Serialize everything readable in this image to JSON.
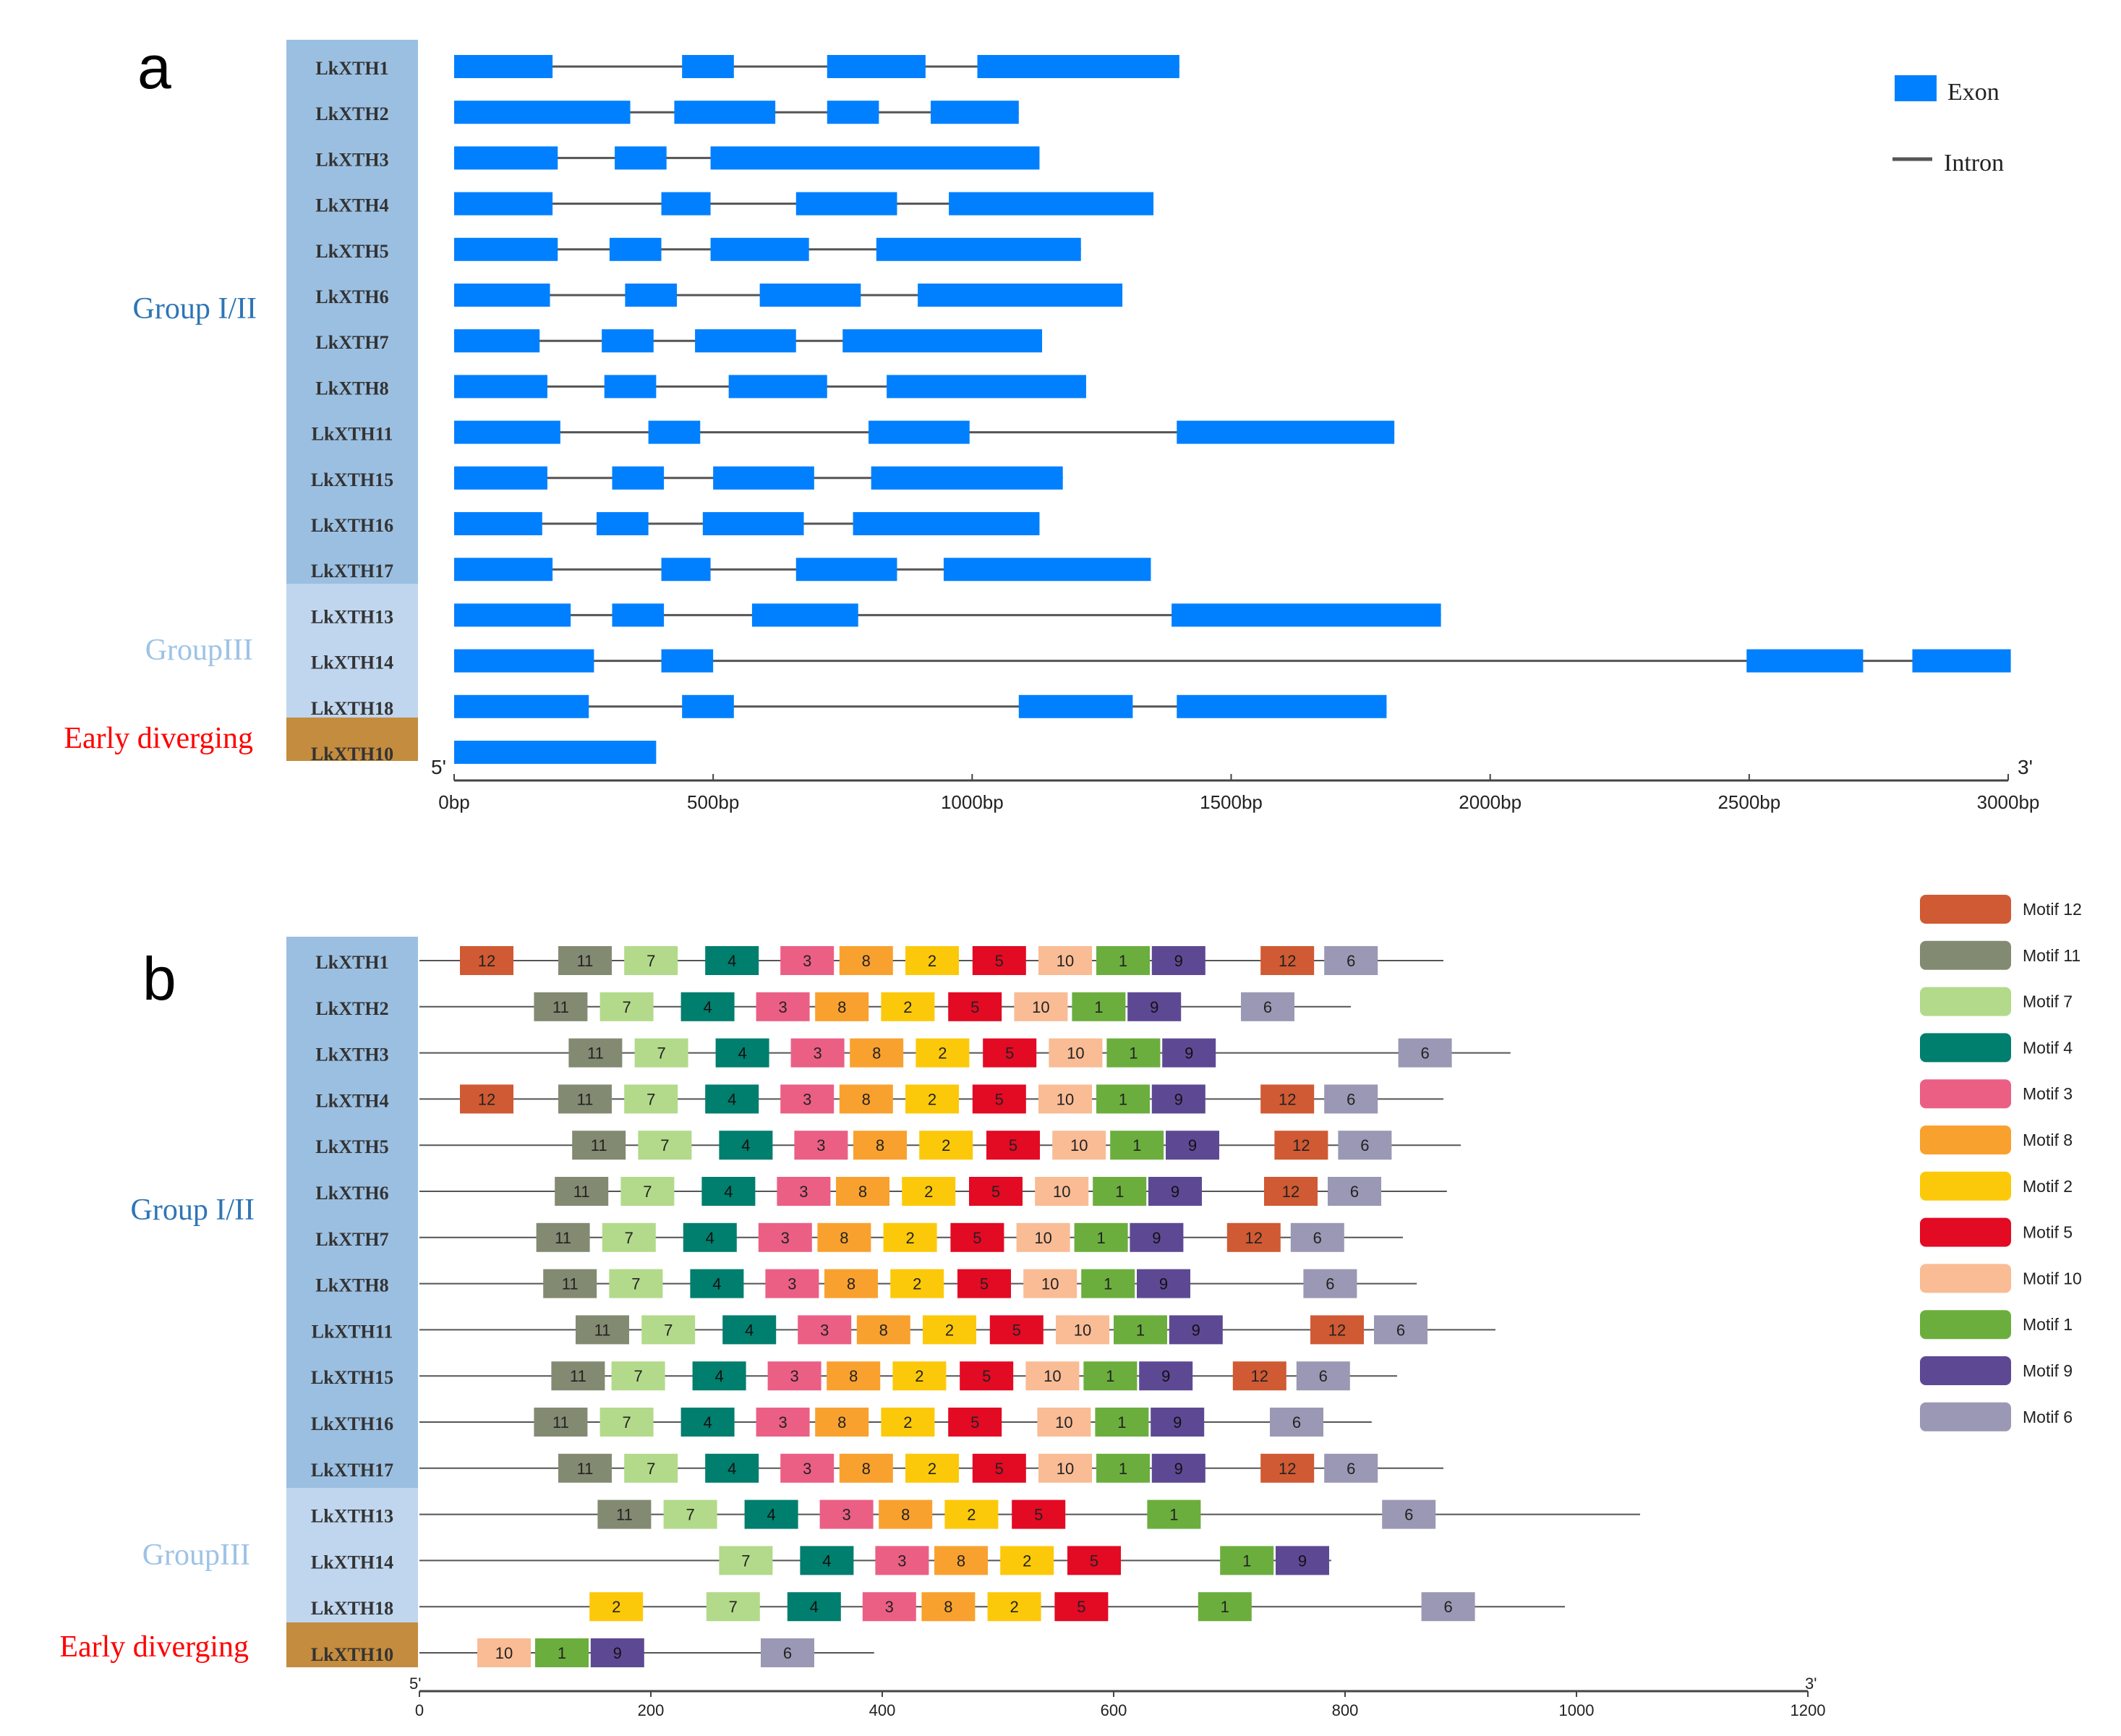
{
  "colors": {
    "exon": "#0080FF",
    "intron": "#555555",
    "group12_bg": "#9BBFE1",
    "group3_bg": "#BFD6EE",
    "early_bg": "#C48C3E",
    "group12_text": "#2E75B6",
    "group3_text": "#9DC3E6",
    "early_text": "#FF0000",
    "axis": "#444444"
  },
  "panel_a": {
    "label": "a",
    "groups": {
      "g12": "Group I/II",
      "g3": "GroupIII",
      "early": "Early diverging"
    },
    "legend": {
      "exon": "Exon",
      "intron": "Intron"
    },
    "axis": {
      "start": "5'",
      "end": "3'",
      "max": 3000,
      "ticks": [
        {
          "v": 0,
          "label": "0bp"
        },
        {
          "v": 500,
          "label": "500bp"
        },
        {
          "v": 1000,
          "label": "1000bp"
        },
        {
          "v": 1500,
          "label": "1500bp"
        },
        {
          "v": 2000,
          "label": "2000bp"
        },
        {
          "v": 2500,
          "label": "2500bp"
        },
        {
          "v": 3000,
          "label": "3000bp"
        }
      ]
    },
    "genes": [
      {
        "name": "LkXTH1",
        "group": "g12",
        "exons": [
          [
            0,
            190
          ],
          [
            440,
            540
          ],
          [
            720,
            910
          ],
          [
            1010,
            1400
          ]
        ]
      },
      {
        "name": "LkXTH2",
        "group": "g12",
        "exons": [
          [
            0,
            340
          ],
          [
            425,
            620
          ],
          [
            720,
            820
          ],
          [
            920,
            1090
          ]
        ]
      },
      {
        "name": "LkXTH3",
        "group": "g12",
        "exons": [
          [
            0,
            200
          ],
          [
            310,
            410
          ],
          [
            495,
            1130
          ]
        ]
      },
      {
        "name": "LkXTH4",
        "group": "g12",
        "exons": [
          [
            0,
            190
          ],
          [
            400,
            495
          ],
          [
            660,
            855
          ],
          [
            955,
            1350
          ]
        ]
      },
      {
        "name": "LkXTH5",
        "group": "g12",
        "exons": [
          [
            0,
            200
          ],
          [
            300,
            400
          ],
          [
            495,
            685
          ],
          [
            815,
            1210
          ]
        ]
      },
      {
        "name": "LkXTH6",
        "group": "g12",
        "exons": [
          [
            0,
            185
          ],
          [
            330,
            430
          ],
          [
            590,
            785
          ],
          [
            895,
            1290
          ]
        ]
      },
      {
        "name": "LkXTH7",
        "group": "g12",
        "exons": [
          [
            0,
            165
          ],
          [
            285,
            385
          ],
          [
            465,
            660
          ],
          [
            750,
            1135
          ]
        ]
      },
      {
        "name": "LkXTH8",
        "group": "g12",
        "exons": [
          [
            0,
            180
          ],
          [
            290,
            390
          ],
          [
            530,
            720
          ],
          [
            835,
            1220
          ]
        ]
      },
      {
        "name": "LkXTH11",
        "group": "g12",
        "exons": [
          [
            0,
            205
          ],
          [
            375,
            475
          ],
          [
            800,
            995
          ],
          [
            1395,
            1815
          ]
        ]
      },
      {
        "name": "LkXTH15",
        "group": "g12",
        "exons": [
          [
            0,
            180
          ],
          [
            305,
            405
          ],
          [
            500,
            695
          ],
          [
            805,
            1175
          ]
        ]
      },
      {
        "name": "LkXTH16",
        "group": "g12",
        "exons": [
          [
            0,
            170
          ],
          [
            275,
            375
          ],
          [
            480,
            675
          ],
          [
            770,
            1130
          ]
        ]
      },
      {
        "name": "LkXTH17",
        "group": "g12",
        "exons": [
          [
            0,
            190
          ],
          [
            400,
            495
          ],
          [
            660,
            855
          ],
          [
            945,
            1345
          ]
        ]
      },
      {
        "name": "LkXTH13",
        "group": "g3",
        "exons": [
          [
            0,
            225
          ],
          [
            305,
            405
          ],
          [
            575,
            780
          ],
          [
            1385,
            1905
          ]
        ]
      },
      {
        "name": "LkXTH14",
        "group": "g3",
        "exons": [
          [
            0,
            270
          ],
          [
            400,
            500
          ],
          [
            2495,
            2720
          ],
          [
            2815,
            3005
          ]
        ]
      },
      {
        "name": "LkXTH18",
        "group": "g3",
        "exons": [
          [
            0,
            260
          ],
          [
            440,
            540
          ],
          [
            1090,
            1310
          ],
          [
            1395,
            1800
          ]
        ]
      },
      {
        "name": "LkXTH10",
        "group": "early",
        "exons": [
          [
            0,
            390
          ]
        ]
      }
    ]
  },
  "panel_b": {
    "label": "b",
    "groups": {
      "g12": "Group I/II",
      "g3": "GroupIII",
      "early": "Early diverging"
    },
    "axis": {
      "start": "5'",
      "end": "3'",
      "max": 1200,
      "ticks": [
        {
          "v": 0,
          "label": "0"
        },
        {
          "v": 200,
          "label": "200"
        },
        {
          "v": 400,
          "label": "400"
        },
        {
          "v": 600,
          "label": "600"
        },
        {
          "v": 800,
          "label": "800"
        },
        {
          "v": 1000,
          "label": "1000"
        },
        {
          "v": 1200,
          "label": "1200"
        }
      ]
    },
    "motif_colors": {
      "12": "#D05A33",
      "11": "#838A72",
      "7": "#B2DA8A",
      "4": "#007E6E",
      "3": "#EB5F85",
      "8": "#F9A12E",
      "2": "#FCC90A",
      "5": "#E30A24",
      "10": "#F9BC95",
      "1": "#6BAE3E",
      "9": "#5D4993",
      "6": "#9A98B4"
    },
    "legend": [
      {
        "id": "12",
        "label": "Motif 12"
      },
      {
        "id": "11",
        "label": "Motif 11"
      },
      {
        "id": "7",
        "label": "Motif 7"
      },
      {
        "id": "4",
        "label": "Motif 4"
      },
      {
        "id": "3",
        "label": "Motif 3"
      },
      {
        "id": "8",
        "label": "Motif 8"
      },
      {
        "id": "2",
        "label": "Motif 2"
      },
      {
        "id": "5",
        "label": "Motif 5"
      },
      {
        "id": "10",
        "label": "Motif 10"
      },
      {
        "id": "1",
        "label": "Motif 1"
      },
      {
        "id": "9",
        "label": "Motif 9"
      },
      {
        "id": "6",
        "label": "Motif 6"
      }
    ],
    "genes": [
      {
        "name": "LkXTH1",
        "group": "g12",
        "length": 885,
        "motifs": [
          [
            35,
            "12"
          ],
          [
            120,
            "11"
          ],
          [
            177,
            "7"
          ],
          [
            247,
            "4"
          ],
          [
            312,
            "3"
          ],
          [
            363,
            "8"
          ],
          [
            420,
            "2"
          ],
          [
            478,
            "5"
          ],
          [
            535,
            "10"
          ],
          [
            585,
            "1"
          ],
          [
            633,
            "9"
          ],
          [
            727,
            "12"
          ],
          [
            782,
            "6"
          ]
        ]
      },
      {
        "name": "LkXTH2",
        "group": "g12",
        "length": 805,
        "motifs": [
          [
            99,
            "11"
          ],
          [
            156,
            "7"
          ],
          [
            226,
            "4"
          ],
          [
            291,
            "3"
          ],
          [
            342,
            "8"
          ],
          [
            399,
            "2"
          ],
          [
            457,
            "5"
          ],
          [
            514,
            "10"
          ],
          [
            564,
            "1"
          ],
          [
            612,
            "9"
          ],
          [
            710,
            "6"
          ]
        ]
      },
      {
        "name": "LkXTH3",
        "group": "g12",
        "length": 943,
        "motifs": [
          [
            129,
            "11"
          ],
          [
            186,
            "7"
          ],
          [
            256,
            "4"
          ],
          [
            321,
            "3"
          ],
          [
            372,
            "8"
          ],
          [
            429,
            "2"
          ],
          [
            487,
            "5"
          ],
          [
            544,
            "10"
          ],
          [
            594,
            "1"
          ],
          [
            642,
            "9"
          ],
          [
            846,
            "6"
          ]
        ]
      },
      {
        "name": "LkXTH4",
        "group": "g12",
        "length": 885,
        "motifs": [
          [
            35,
            "12"
          ],
          [
            120,
            "11"
          ],
          [
            177,
            "7"
          ],
          [
            247,
            "4"
          ],
          [
            312,
            "3"
          ],
          [
            363,
            "8"
          ],
          [
            420,
            "2"
          ],
          [
            478,
            "5"
          ],
          [
            535,
            "10"
          ],
          [
            585,
            "1"
          ],
          [
            633,
            "9"
          ],
          [
            727,
            "12"
          ],
          [
            782,
            "6"
          ]
        ]
      },
      {
        "name": "LkXTH5",
        "group": "g12",
        "length": 900,
        "motifs": [
          [
            132,
            "11"
          ],
          [
            189,
            "7"
          ],
          [
            259,
            "4"
          ],
          [
            324,
            "3"
          ],
          [
            375,
            "8"
          ],
          [
            432,
            "2"
          ],
          [
            490,
            "5"
          ],
          [
            547,
            "10"
          ],
          [
            597,
            "1"
          ],
          [
            645,
            "9"
          ],
          [
            739,
            "12"
          ],
          [
            794,
            "6"
          ]
        ]
      },
      {
        "name": "LkXTH6",
        "group": "g12",
        "length": 888,
        "motifs": [
          [
            117,
            "11"
          ],
          [
            174,
            "7"
          ],
          [
            244,
            "4"
          ],
          [
            309,
            "3"
          ],
          [
            360,
            "8"
          ],
          [
            417,
            "2"
          ],
          [
            475,
            "5"
          ],
          [
            532,
            "10"
          ],
          [
            582,
            "1"
          ],
          [
            630,
            "9"
          ],
          [
            730,
            "12"
          ],
          [
            785,
            "6"
          ]
        ]
      },
      {
        "name": "LkXTH7",
        "group": "g12",
        "length": 850,
        "motifs": [
          [
            101,
            "11"
          ],
          [
            158,
            "7"
          ],
          [
            228,
            "4"
          ],
          [
            293,
            "3"
          ],
          [
            344,
            "8"
          ],
          [
            401,
            "2"
          ],
          [
            459,
            "5"
          ],
          [
            516,
            "10"
          ],
          [
            566,
            "1"
          ],
          [
            614,
            "9"
          ],
          [
            698,
            "12"
          ],
          [
            753,
            "6"
          ]
        ]
      },
      {
        "name": "LkXTH8",
        "group": "g12",
        "length": 862,
        "motifs": [
          [
            107,
            "11"
          ],
          [
            164,
            "7"
          ],
          [
            234,
            "4"
          ],
          [
            299,
            "3"
          ],
          [
            350,
            "8"
          ],
          [
            407,
            "2"
          ],
          [
            465,
            "5"
          ],
          [
            522,
            "10"
          ],
          [
            572,
            "1"
          ],
          [
            620,
            "9"
          ],
          [
            764,
            "6"
          ]
        ]
      },
      {
        "name": "LkXTH11",
        "group": "g12",
        "length": 930,
        "motifs": [
          [
            135,
            "11"
          ],
          [
            192,
            "7"
          ],
          [
            262,
            "4"
          ],
          [
            327,
            "3"
          ],
          [
            378,
            "8"
          ],
          [
            435,
            "2"
          ],
          [
            493,
            "5"
          ],
          [
            550,
            "10"
          ],
          [
            600,
            "1"
          ],
          [
            648,
            "9"
          ],
          [
            770,
            "12"
          ],
          [
            825,
            "6"
          ]
        ]
      },
      {
        "name": "LkXTH15",
        "group": "g12",
        "length": 845,
        "motifs": [
          [
            114,
            "11"
          ],
          [
            166,
            "7"
          ],
          [
            236,
            "4"
          ],
          [
            301,
            "3"
          ],
          [
            352,
            "8"
          ],
          [
            409,
            "2"
          ],
          [
            467,
            "5"
          ],
          [
            524,
            "10"
          ],
          [
            574,
            "1"
          ],
          [
            622,
            "9"
          ],
          [
            703,
            "12"
          ],
          [
            758,
            "6"
          ]
        ]
      },
      {
        "name": "LkXTH16",
        "group": "g12",
        "length": 823,
        "motifs": [
          [
            99,
            "11"
          ],
          [
            156,
            "7"
          ],
          [
            226,
            "4"
          ],
          [
            291,
            "3"
          ],
          [
            342,
            "8"
          ],
          [
            399,
            "2"
          ],
          [
            457,
            "5"
          ],
          [
            534,
            "10"
          ],
          [
            584,
            "1"
          ],
          [
            632,
            "9"
          ],
          [
            735,
            "6"
          ]
        ]
      },
      {
        "name": "LkXTH17",
        "group": "g12",
        "length": 885,
        "motifs": [
          [
            120,
            "11"
          ],
          [
            177,
            "7"
          ],
          [
            247,
            "4"
          ],
          [
            312,
            "3"
          ],
          [
            363,
            "8"
          ],
          [
            420,
            "2"
          ],
          [
            478,
            "5"
          ],
          [
            535,
            "10"
          ],
          [
            585,
            "1"
          ],
          [
            633,
            "9"
          ],
          [
            727,
            "12"
          ],
          [
            782,
            "6"
          ]
        ]
      },
      {
        "name": "LkXTH13",
        "group": "g3",
        "length": 1055,
        "motifs": [
          [
            154,
            "11"
          ],
          [
            211,
            "7"
          ],
          [
            281,
            "4"
          ],
          [
            346,
            "3"
          ],
          [
            397,
            "8"
          ],
          [
            454,
            "2"
          ],
          [
            512,
            "5"
          ],
          [
            629,
            "1"
          ],
          [
            832,
            "6"
          ]
        ]
      },
      {
        "name": "LkXTH14",
        "group": "g3",
        "length": 788,
        "motifs": [
          [
            259,
            "7"
          ],
          [
            329,
            "4"
          ],
          [
            394,
            "3"
          ],
          [
            445,
            "8"
          ],
          [
            502,
            "2"
          ],
          [
            560,
            "5"
          ],
          [
            692,
            "1"
          ],
          [
            740,
            "9"
          ]
        ]
      },
      {
        "name": "LkXTH18",
        "group": "g3",
        "length": 990,
        "motifs": [
          [
            147,
            "2"
          ],
          [
            248,
            "7"
          ],
          [
            318,
            "4"
          ],
          [
            383,
            "3"
          ],
          [
            434,
            "8"
          ],
          [
            491,
            "2"
          ],
          [
            549,
            "5"
          ],
          [
            673,
            "1"
          ],
          [
            866,
            "6"
          ]
        ]
      },
      {
        "name": "LkXTH10",
        "group": "early",
        "length": 393,
        "motifs": [
          [
            50,
            "10"
          ],
          [
            100,
            "1"
          ],
          [
            148,
            "9"
          ],
          [
            295,
            "6"
          ]
        ]
      }
    ]
  }
}
